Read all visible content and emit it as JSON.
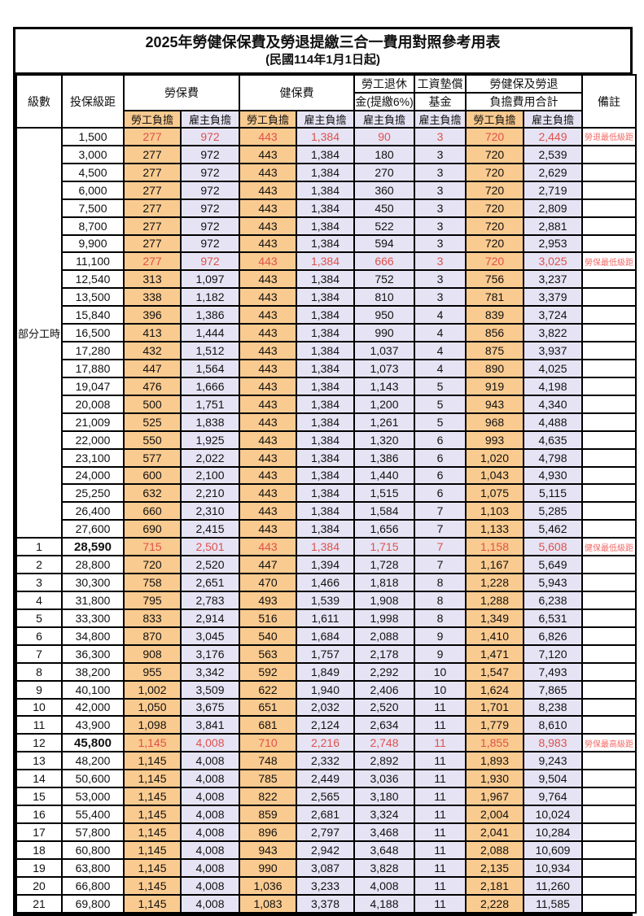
{
  "title": "2025年勞健保保費及勞退提繳三合一費用對照參考用表",
  "subtitle": "(民國114年1月1日起)",
  "colors": {
    "employee_column_bg": "#FACB90",
    "employer_column_bg": "#E6E4F4",
    "highlight_text": "#DE514D",
    "remark_text": "#F26A66",
    "border": "#000000"
  },
  "header": {
    "level": "級數",
    "bracket": "投保級距",
    "labor_insurance": "勞保費",
    "health_insurance": "健保費",
    "pension_line1": "勞工退休",
    "pension_line2": "金(提繳6%)",
    "wage_fund_line1": "工資墊償",
    "wage_fund_line2": "基金",
    "total_line1": "勞健保及勞退",
    "total_line2": "負擔費用合計",
    "remark": "備註",
    "employee_burden": "勞工負擔",
    "employer_burden": "雇主負擔"
  },
  "part_time_label": "部分工時",
  "part_time_row_count": 23,
  "rows": [
    {
      "level": "",
      "bracket": "1,500",
      "v": [
        "277",
        "972",
        "443",
        "1,384",
        "90",
        "3",
        "720",
        "2,449"
      ],
      "remark": "勞退最低級距",
      "red": true,
      "bold": false
    },
    {
      "level": "",
      "bracket": "3,000",
      "v": [
        "277",
        "972",
        "443",
        "1,384",
        "180",
        "3",
        "720",
        "2,539"
      ],
      "remark": "",
      "red": false,
      "bold": false
    },
    {
      "level": "",
      "bracket": "4,500",
      "v": [
        "277",
        "972",
        "443",
        "1,384",
        "270",
        "3",
        "720",
        "2,629"
      ],
      "remark": "",
      "red": false,
      "bold": false
    },
    {
      "level": "",
      "bracket": "6,000",
      "v": [
        "277",
        "972",
        "443",
        "1,384",
        "360",
        "3",
        "720",
        "2,719"
      ],
      "remark": "",
      "red": false,
      "bold": false
    },
    {
      "level": "",
      "bracket": "7,500",
      "v": [
        "277",
        "972",
        "443",
        "1,384",
        "450",
        "3",
        "720",
        "2,809"
      ],
      "remark": "",
      "red": false,
      "bold": false
    },
    {
      "level": "",
      "bracket": "8,700",
      "v": [
        "277",
        "972",
        "443",
        "1,384",
        "522",
        "3",
        "720",
        "2,881"
      ],
      "remark": "",
      "red": false,
      "bold": false
    },
    {
      "level": "",
      "bracket": "9,900",
      "v": [
        "277",
        "972",
        "443",
        "1,384",
        "594",
        "3",
        "720",
        "2,953"
      ],
      "remark": "",
      "red": false,
      "bold": false
    },
    {
      "level": "",
      "bracket": "11,100",
      "v": [
        "277",
        "972",
        "443",
        "1,384",
        "666",
        "3",
        "720",
        "3,025"
      ],
      "remark": "勞保最低級距",
      "red": true,
      "bold": false
    },
    {
      "level": "",
      "bracket": "12,540",
      "v": [
        "313",
        "1,097",
        "443",
        "1,384",
        "752",
        "3",
        "756",
        "3,237"
      ],
      "remark": "",
      "red": false,
      "bold": false
    },
    {
      "level": "",
      "bracket": "13,500",
      "v": [
        "338",
        "1,182",
        "443",
        "1,384",
        "810",
        "3",
        "781",
        "3,379"
      ],
      "remark": "",
      "red": false,
      "bold": false
    },
    {
      "level": "",
      "bracket": "15,840",
      "v": [
        "396",
        "1,386",
        "443",
        "1,384",
        "950",
        "4",
        "839",
        "3,724"
      ],
      "remark": "",
      "red": false,
      "bold": false
    },
    {
      "level": "",
      "bracket": "16,500",
      "v": [
        "413",
        "1,444",
        "443",
        "1,384",
        "990",
        "4",
        "856",
        "3,822"
      ],
      "remark": "",
      "red": false,
      "bold": false
    },
    {
      "level": "",
      "bracket": "17,280",
      "v": [
        "432",
        "1,512",
        "443",
        "1,384",
        "1,037",
        "4",
        "875",
        "3,937"
      ],
      "remark": "",
      "red": false,
      "bold": false
    },
    {
      "level": "",
      "bracket": "17,880",
      "v": [
        "447",
        "1,564",
        "443",
        "1,384",
        "1,073",
        "4",
        "890",
        "4,025"
      ],
      "remark": "",
      "red": false,
      "bold": false
    },
    {
      "level": "",
      "bracket": "19,047",
      "v": [
        "476",
        "1,666",
        "443",
        "1,384",
        "1,143",
        "5",
        "919",
        "4,198"
      ],
      "remark": "",
      "red": false,
      "bold": false
    },
    {
      "level": "",
      "bracket": "20,008",
      "v": [
        "500",
        "1,751",
        "443",
        "1,384",
        "1,200",
        "5",
        "943",
        "4,340"
      ],
      "remark": "",
      "red": false,
      "bold": false
    },
    {
      "level": "",
      "bracket": "21,009",
      "v": [
        "525",
        "1,838",
        "443",
        "1,384",
        "1,261",
        "5",
        "968",
        "4,488"
      ],
      "remark": "",
      "red": false,
      "bold": false
    },
    {
      "level": "",
      "bracket": "22,000",
      "v": [
        "550",
        "1,925",
        "443",
        "1,384",
        "1,320",
        "6",
        "993",
        "4,635"
      ],
      "remark": "",
      "red": false,
      "bold": false
    },
    {
      "level": "",
      "bracket": "23,100",
      "v": [
        "577",
        "2,022",
        "443",
        "1,384",
        "1,386",
        "6",
        "1,020",
        "4,798"
      ],
      "remark": "",
      "red": false,
      "bold": false
    },
    {
      "level": "",
      "bracket": "24,000",
      "v": [
        "600",
        "2,100",
        "443",
        "1,384",
        "1,440",
        "6",
        "1,043",
        "4,930"
      ],
      "remark": "",
      "red": false,
      "bold": false
    },
    {
      "level": "",
      "bracket": "25,250",
      "v": [
        "632",
        "2,210",
        "443",
        "1,384",
        "1,515",
        "6",
        "1,075",
        "5,115"
      ],
      "remark": "",
      "red": false,
      "bold": false
    },
    {
      "level": "",
      "bracket": "26,400",
      "v": [
        "660",
        "2,310",
        "443",
        "1,384",
        "1,584",
        "7",
        "1,103",
        "5,285"
      ],
      "remark": "",
      "red": false,
      "bold": false
    },
    {
      "level": "",
      "bracket": "27,600",
      "v": [
        "690",
        "2,415",
        "443",
        "1,384",
        "1,656",
        "7",
        "1,133",
        "5,462"
      ],
      "remark": "",
      "red": false,
      "bold": false
    },
    {
      "level": "1",
      "bracket": "28,590",
      "v": [
        "715",
        "2,501",
        "443",
        "1,384",
        "1,715",
        "7",
        "1,158",
        "5,608"
      ],
      "remark": "健保最低級距",
      "red": true,
      "bold": true
    },
    {
      "level": "2",
      "bracket": "28,800",
      "v": [
        "720",
        "2,520",
        "447",
        "1,394",
        "1,728",
        "7",
        "1,167",
        "5,649"
      ],
      "remark": "",
      "red": false,
      "bold": false
    },
    {
      "level": "3",
      "bracket": "30,300",
      "v": [
        "758",
        "2,651",
        "470",
        "1,466",
        "1,818",
        "8",
        "1,228",
        "5,943"
      ],
      "remark": "",
      "red": false,
      "bold": false
    },
    {
      "level": "4",
      "bracket": "31,800",
      "v": [
        "795",
        "2,783",
        "493",
        "1,539",
        "1,908",
        "8",
        "1,288",
        "6,238"
      ],
      "remark": "",
      "red": false,
      "bold": false
    },
    {
      "level": "5",
      "bracket": "33,300",
      "v": [
        "833",
        "2,914",
        "516",
        "1,611",
        "1,998",
        "8",
        "1,349",
        "6,531"
      ],
      "remark": "",
      "red": false,
      "bold": false
    },
    {
      "level": "6",
      "bracket": "34,800",
      "v": [
        "870",
        "3,045",
        "540",
        "1,684",
        "2,088",
        "9",
        "1,410",
        "6,826"
      ],
      "remark": "",
      "red": false,
      "bold": false
    },
    {
      "level": "7",
      "bracket": "36,300",
      "v": [
        "908",
        "3,176",
        "563",
        "1,757",
        "2,178",
        "9",
        "1,471",
        "7,120"
      ],
      "remark": "",
      "red": false,
      "bold": false
    },
    {
      "level": "8",
      "bracket": "38,200",
      "v": [
        "955",
        "3,342",
        "592",
        "1,849",
        "2,292",
        "10",
        "1,547",
        "7,493"
      ],
      "remark": "",
      "red": false,
      "bold": false
    },
    {
      "level": "9",
      "bracket": "40,100",
      "v": [
        "1,002",
        "3,509",
        "622",
        "1,940",
        "2,406",
        "10",
        "1,624",
        "7,865"
      ],
      "remark": "",
      "red": false,
      "bold": false
    },
    {
      "level": "10",
      "bracket": "42,000",
      "v": [
        "1,050",
        "3,675",
        "651",
        "2,032",
        "2,520",
        "11",
        "1,701",
        "8,238"
      ],
      "remark": "",
      "red": false,
      "bold": false
    },
    {
      "level": "11",
      "bracket": "43,900",
      "v": [
        "1,098",
        "3,841",
        "681",
        "2,124",
        "2,634",
        "11",
        "1,779",
        "8,610"
      ],
      "remark": "",
      "red": false,
      "bold": false
    },
    {
      "level": "12",
      "bracket": "45,800",
      "v": [
        "1,145",
        "4,008",
        "710",
        "2,216",
        "2,748",
        "11",
        "1,855",
        "8,983"
      ],
      "remark": "勞保最高級距",
      "red": true,
      "bold": true
    },
    {
      "level": "13",
      "bracket": "48,200",
      "v": [
        "1,145",
        "4,008",
        "748",
        "2,332",
        "2,892",
        "11",
        "1,893",
        "9,243"
      ],
      "remark": "",
      "red": false,
      "bold": false
    },
    {
      "level": "14",
      "bracket": "50,600",
      "v": [
        "1,145",
        "4,008",
        "785",
        "2,449",
        "3,036",
        "11",
        "1,930",
        "9,504"
      ],
      "remark": "",
      "red": false,
      "bold": false
    },
    {
      "level": "15",
      "bracket": "53,000",
      "v": [
        "1,145",
        "4,008",
        "822",
        "2,565",
        "3,180",
        "11",
        "1,967",
        "9,764"
      ],
      "remark": "",
      "red": false,
      "bold": false
    },
    {
      "level": "16",
      "bracket": "55,400",
      "v": [
        "1,145",
        "4,008",
        "859",
        "2,681",
        "3,324",
        "11",
        "2,004",
        "10,024"
      ],
      "remark": "",
      "red": false,
      "bold": false
    },
    {
      "level": "17",
      "bracket": "57,800",
      "v": [
        "1,145",
        "4,008",
        "896",
        "2,797",
        "3,468",
        "11",
        "2,041",
        "10,284"
      ],
      "remark": "",
      "red": false,
      "bold": false
    },
    {
      "level": "18",
      "bracket": "60,800",
      "v": [
        "1,145",
        "4,008",
        "943",
        "2,942",
        "3,648",
        "11",
        "2,088",
        "10,609"
      ],
      "remark": "",
      "red": false,
      "bold": false
    },
    {
      "level": "19",
      "bracket": "63,800",
      "v": [
        "1,145",
        "4,008",
        "990",
        "3,087",
        "3,828",
        "11",
        "2,135",
        "10,934"
      ],
      "remark": "",
      "red": false,
      "bold": false
    },
    {
      "level": "20",
      "bracket": "66,800",
      "v": [
        "1,145",
        "4,008",
        "1,036",
        "3,233",
        "4,008",
        "11",
        "2,181",
        "11,260"
      ],
      "remark": "",
      "red": false,
      "bold": false
    },
    {
      "level": "21",
      "bracket": "69,800",
      "v": [
        "1,145",
        "4,008",
        "1,083",
        "3,378",
        "4,188",
        "11",
        "2,228",
        "11,585"
      ],
      "remark": "",
      "red": false,
      "bold": false
    }
  ]
}
